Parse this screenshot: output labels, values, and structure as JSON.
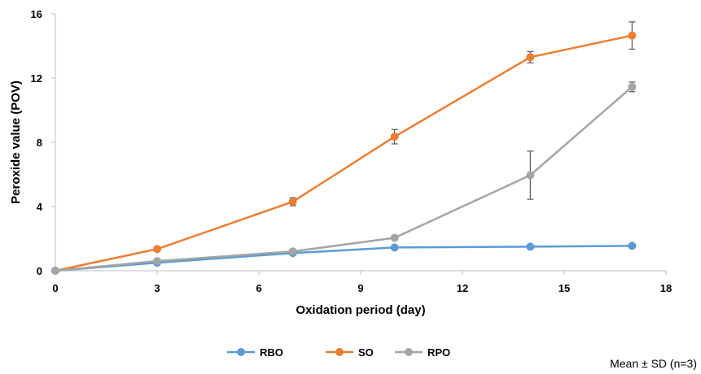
{
  "chart_data": {
    "type": "line",
    "title": "",
    "xlabel": "Oxidation period (day)",
    "ylabel": "Peroxide value (POV)",
    "xlim": [
      0,
      18
    ],
    "ylim": [
      0,
      16
    ],
    "xticks": [
      0,
      3,
      6,
      9,
      12,
      15,
      18
    ],
    "yticks": [
      0,
      4,
      8,
      12,
      16
    ],
    "x": [
      0,
      3,
      7,
      10,
      14,
      17
    ],
    "grid": false,
    "legend_position": "bottom",
    "series": [
      {
        "name": "RBO",
        "color": "#5b9bd5",
        "values": [
          0.0,
          0.5,
          1.1,
          1.45,
          1.5,
          1.55
        ],
        "errors": [
          0,
          0,
          0,
          0,
          0,
          0
        ]
      },
      {
        "name": "SO",
        "color": "#ed7d31",
        "values": [
          0.0,
          1.35,
          4.3,
          8.35,
          13.3,
          14.65
        ],
        "errors": [
          0,
          0,
          0.25,
          0.45,
          0.35,
          0.85
        ]
      },
      {
        "name": "RPO",
        "color": "#a5a5a5",
        "values": [
          0.0,
          0.6,
          1.2,
          2.05,
          5.95,
          11.45
        ],
        "errors": [
          0,
          0,
          0,
          0,
          1.5,
          0.3
        ]
      }
    ]
  },
  "note": "Mean ± SD  (n=3)"
}
